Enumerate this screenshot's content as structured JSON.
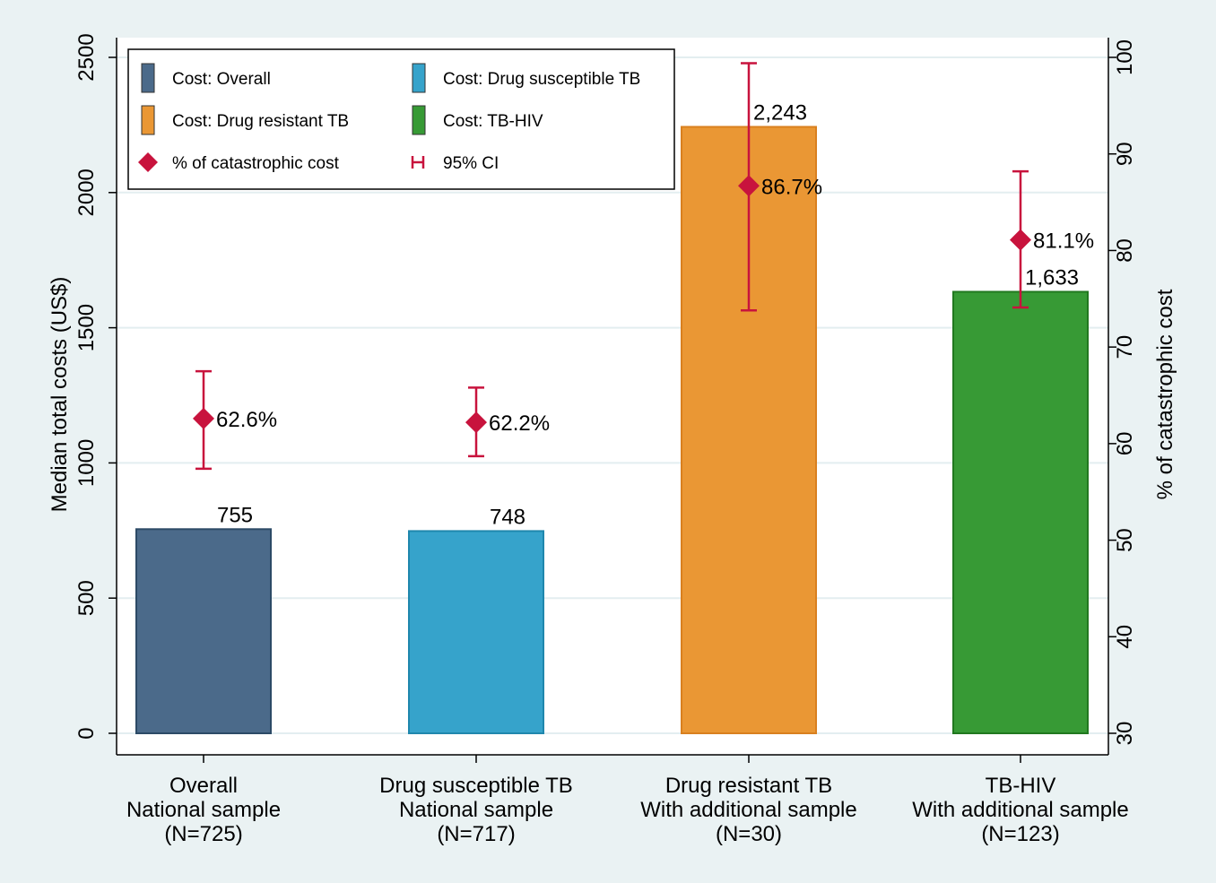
{
  "chart_data": {
    "type": "bar",
    "categories": [
      [
        "Overall",
        "National sample",
        "(N=725)"
      ],
      [
        "Drug susceptible TB",
        "National sample",
        "(N=717)"
      ],
      [
        "Drug resistant TB",
        "With additional sample",
        "(N=30)"
      ],
      [
        "TB-HIV",
        "With additional sample",
        "(N=123)"
      ]
    ],
    "bars": {
      "values": [
        755,
        748,
        2243,
        1633
      ],
      "labels": [
        "755",
        "748",
        "2,243",
        "1,633"
      ],
      "colors": [
        "#4b6a8a",
        "#36a3cb",
        "#ea9734",
        "#379a35"
      ],
      "border_colors": [
        "#2c4a66",
        "#1f87ad",
        "#d9801f",
        "#21781f"
      ]
    },
    "catastrophic": {
      "values": [
        62.6,
        62.2,
        86.7,
        81.1
      ],
      "labels": [
        "62.6%",
        "62.2%",
        "86.7%",
        "81.1%"
      ],
      "ci_low": [
        57.4,
        58.7,
        73.8,
        74.1
      ],
      "ci_high": [
        67.5,
        65.8,
        99.4,
        88.2
      ],
      "color": "#c8133d"
    },
    "y_left": {
      "label": "Median total costs (US$)",
      "min": 0,
      "max": 2500,
      "ticks": [
        0,
        500,
        1000,
        1500,
        2000,
        2500
      ]
    },
    "y_right": {
      "label": "% of catastrophic cost",
      "min": 30,
      "max": 100,
      "ticks": [
        30,
        40,
        50,
        60,
        70,
        80,
        90,
        100
      ]
    },
    "legend": {
      "placement": "top-left",
      "items": [
        {
          "label": "Cost: Overall",
          "type": "bar",
          "color": "#4b6a8a"
        },
        {
          "label": "Cost: Drug susceptible TB",
          "type": "bar",
          "color": "#36a3cb"
        },
        {
          "label": "Cost: Drug resistant TB",
          "type": "bar",
          "color": "#ea9734"
        },
        {
          "label": "Cost: TB-HIV",
          "type": "bar",
          "color": "#379a35"
        },
        {
          "label": "% of catastrophic cost",
          "type": "diamond",
          "color": "#c8133d"
        },
        {
          "label": "95% CI",
          "type": "ci",
          "color": "#c8133d"
        }
      ]
    },
    "grid": true
  }
}
